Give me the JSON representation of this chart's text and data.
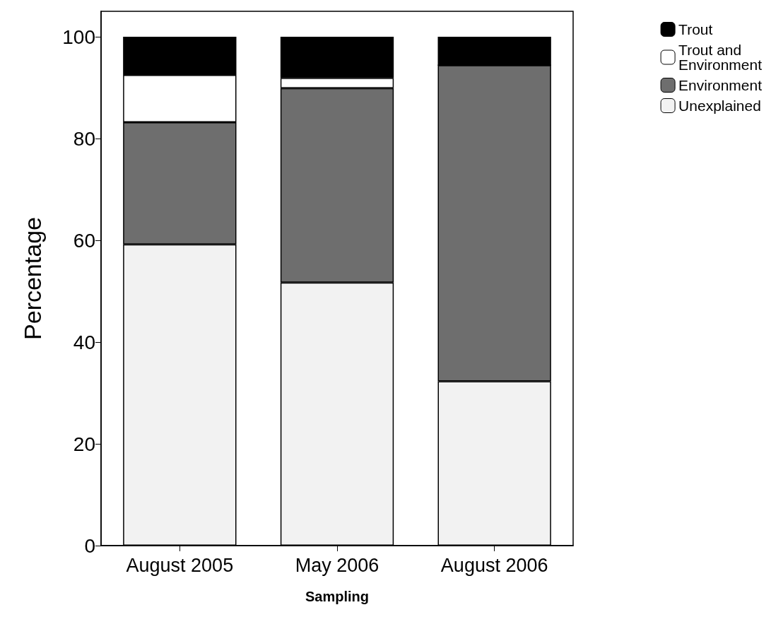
{
  "chart_data": {
    "type": "bar",
    "stacked": true,
    "xlabel": "Sampling",
    "ylabel": "Percentage",
    "categories": [
      "August 2005",
      "May 2006",
      "August 2006"
    ],
    "series": [
      {
        "name": "Unexplained",
        "color": "#f2f2f2",
        "values": [
          59.2,
          51.7,
          32.3
        ]
      },
      {
        "name": "Environment",
        "color": "#6e6e6e",
        "values": [
          24.0,
          38.2,
          62.1
        ]
      },
      {
        "name": "Trout and Environment",
        "color": "#ffffff",
        "values": [
          9.3,
          2.0,
          0
        ]
      },
      {
        "name": "Trout",
        "color": "#000000",
        "values": [
          7.5,
          8.1,
          5.6
        ]
      }
    ],
    "ylim": [
      0,
      105
    ],
    "yticks": [
      0,
      20,
      40,
      60,
      80,
      100
    ],
    "grid": false,
    "legend": "top right"
  }
}
